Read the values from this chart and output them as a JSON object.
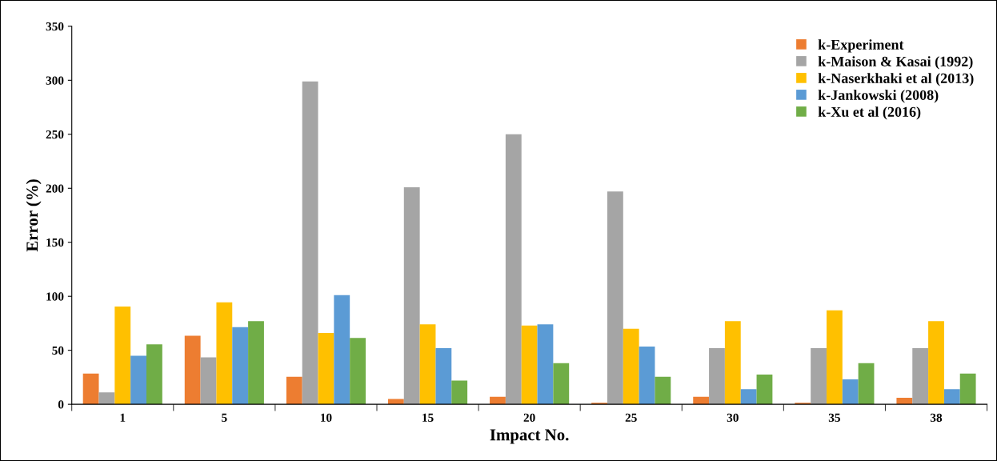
{
  "chart_data": {
    "type": "bar",
    "xlabel": "Impact No.",
    "ylabel": "Error (%)",
    "categories": [
      "1",
      "5",
      "10",
      "15",
      "20",
      "25",
      "30",
      "35",
      "38"
    ],
    "series": [
      {
        "name": "k-Experiment",
        "color": "#ed7d31",
        "values": [
          28.5,
          63.5,
          25.5,
          5,
          7,
          1.5,
          7,
          1.5,
          6
        ]
      },
      {
        "name": "k-Maison & Kasai (1992)",
        "color": "#a5a5a5",
        "values": [
          11,
          43.5,
          299,
          201,
          250,
          197,
          52,
          52,
          52
        ]
      },
      {
        "name": "k-Naserkhaki et al (2013)",
        "color": "#ffc000",
        "values": [
          90.5,
          94.5,
          66,
          74,
          73,
          70,
          77,
          87,
          77
        ]
      },
      {
        "name": "k-Jankowski (2008)",
        "color": "#5b9bd5",
        "values": [
          45,
          71.5,
          101,
          52,
          74,
          53.5,
          14,
          23,
          14
        ]
      },
      {
        "name": "k-Xu et al (2016)",
        "color": "#70ad47",
        "values": [
          55.5,
          77,
          61.5,
          22,
          38,
          25.5,
          27.5,
          38,
          28.5
        ]
      }
    ],
    "ylim": [
      0,
      350
    ],
    "yticks": [
      0,
      50,
      100,
      150,
      200,
      250,
      300,
      350
    ],
    "grid": false,
    "legend": "top right"
  }
}
